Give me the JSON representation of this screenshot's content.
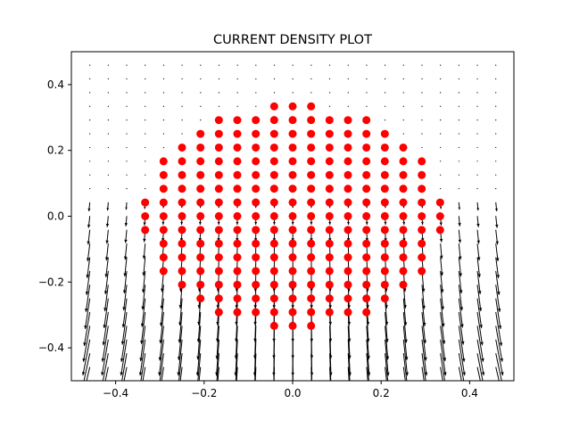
{
  "chart_data": {
    "type": "scatter",
    "title": "CURRENT DENSITY PLOT",
    "xlabel": "",
    "ylabel": "",
    "xlim": [
      -0.5,
      0.5
    ],
    "ylim": [
      -0.5,
      0.5
    ],
    "xticks": [
      -0.4,
      -0.2,
      0.0,
      0.2,
      0.4
    ],
    "yticks": [
      -0.4,
      -0.2,
      0.0,
      0.2,
      0.4
    ],
    "xtick_labels": [
      "−0.4",
      "−0.2",
      "0.0",
      "0.2",
      "0.4"
    ],
    "ytick_labels": [
      "−0.4",
      "−0.2",
      "0.0",
      "0.2",
      "0.4"
    ],
    "grid": false,
    "colors": {
      "points": "#ff0000",
      "vectors": "#000000",
      "frame": "#000000"
    },
    "points": {
      "x_step": 0.0417,
      "y_step": 0.0417,
      "column_centers": [
        -0.3333,
        -0.2917,
        -0.25,
        -0.2083,
        -0.1667,
        -0.125,
        -0.0833,
        -0.0417,
        0.0,
        0.0417,
        0.0833,
        0.125,
        0.1667,
        0.2083,
        0.25,
        0.2917,
        0.3333
      ],
      "column_y_ranges": [
        [
          -0.0417,
          0.0417
        ],
        [
          -0.1667,
          0.1667
        ],
        [
          -0.2083,
          0.2083
        ],
        [
          -0.25,
          0.25
        ],
        [
          -0.2917,
          0.2917
        ],
        [
          -0.2917,
          0.2917
        ],
        [
          -0.2917,
          0.2917
        ],
        [
          -0.3333,
          0.3333
        ],
        [
          -0.3333,
          0.3333
        ],
        [
          -0.3333,
          0.3333
        ],
        [
          -0.2917,
          0.2917
        ],
        [
          -0.2917,
          0.2917
        ],
        [
          -0.2917,
          0.2917
        ],
        [
          -0.25,
          0.25
        ],
        [
          -0.2083,
          0.2083
        ],
        [
          -0.1667,
          0.1667
        ],
        [
          -0.0417,
          0.0417
        ]
      ]
    },
    "vector_field": {
      "x_start": -0.4583,
      "y_start": -0.4583,
      "step": 0.0417,
      "count_x": 23,
      "count_y": 23,
      "note_direction": "vectors point downward, converging toward bottom edge; largest magnitude near bottom"
    }
  }
}
